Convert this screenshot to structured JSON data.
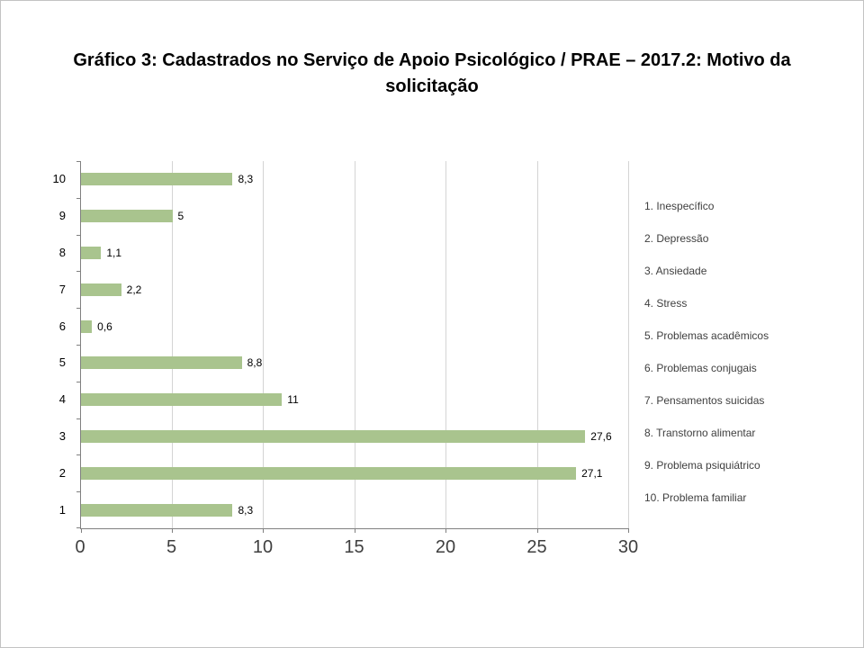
{
  "chart_data": {
    "type": "bar",
    "orientation": "horizontal",
    "title": "Gráfico 3: Cadastrados no Serviço de Apoio Psicológico / PRAE – 2017.2: Motivo da solicitação",
    "xlabel": "",
    "ylabel": "",
    "xlim": [
      0,
      30
    ],
    "xticks": [
      0,
      5,
      10,
      15,
      20,
      25,
      30
    ],
    "grid": true,
    "legend_position": "right",
    "rows": [
      {
        "category": "10",
        "value": 8.3,
        "label": "8,3"
      },
      {
        "category": "9",
        "value": 5,
        "label": "5"
      },
      {
        "category": "8",
        "value": 1.1,
        "label": "1,1"
      },
      {
        "category": "7",
        "value": 2.2,
        "label": "2,2"
      },
      {
        "category": "6",
        "value": 0.6,
        "label": "0,6"
      },
      {
        "category": "5",
        "value": 8.8,
        "label": "8,8"
      },
      {
        "category": "4",
        "value": 11,
        "label": "11"
      },
      {
        "category": "3",
        "value": 27.6,
        "label": "27,6"
      },
      {
        "category": "2",
        "value": 27.1,
        "label": "27,1"
      },
      {
        "category": "1",
        "value": 8.3,
        "label": "8,3"
      }
    ],
    "legend": [
      "1. Inespecífico",
      "2. Depressão",
      "3. Ansiedade",
      "4. Stress",
      "5. Problemas acadêmicos",
      "6. Problemas conjugais",
      "7. Pensamentos suicidas",
      "8. Transtorno alimentar",
      "9. Problema psiquiátrico",
      "10. Problema familiar"
    ],
    "style": {
      "bar_color": "#a9c48e",
      "grid_color": "#d4d4d4",
      "axis_color": "#808080"
    }
  }
}
